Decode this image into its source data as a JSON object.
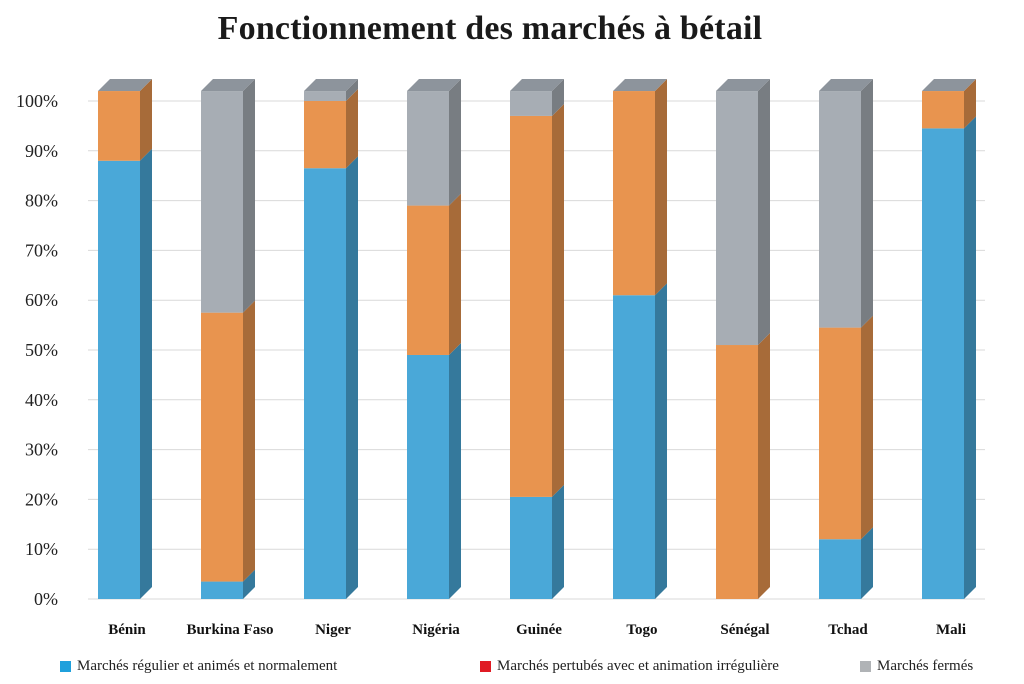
{
  "chart_data": {
    "type": "bar",
    "stacked": true,
    "style": "3d",
    "title": "Fonctionnement des marchés à bétail",
    "categories": [
      "Bénin",
      "Burkina Faso",
      "Niger",
      "Nigéria",
      "Guinée",
      "Togo",
      "Sénégal",
      "Tchad",
      "Mali"
    ],
    "series": [
      {
        "name": "Marchés régulier et animés et normalement",
        "color": "#4aa8d8",
        "values": [
          88,
          3.5,
          86.5,
          49,
          20.5,
          61,
          0,
          12,
          94.5
        ]
      },
      {
        "name": "Marchés pertubés avec et animation irrégulière",
        "color": "#e8944f",
        "values": [
          14,
          54,
          13.5,
          30,
          76.5,
          41,
          51,
          42.5,
          7.5
        ]
      },
      {
        "name": "Marchés  fermés",
        "color": "#a7adb4",
        "values": [
          0,
          44.5,
          2,
          23,
          5,
          0,
          51,
          47.5,
          0
        ]
      }
    ],
    "legend_colors": [
      "#1fa0dc",
      "#e01b24",
      "#b0b3b6"
    ],
    "yticks": [
      "0%",
      "10%",
      "20%",
      "30%",
      "40%",
      "50%",
      "60%",
      "70%",
      "80%",
      "90%",
      "100%"
    ],
    "ylim": [
      0,
      100
    ],
    "grid": true,
    "legend_position": "bottom"
  }
}
